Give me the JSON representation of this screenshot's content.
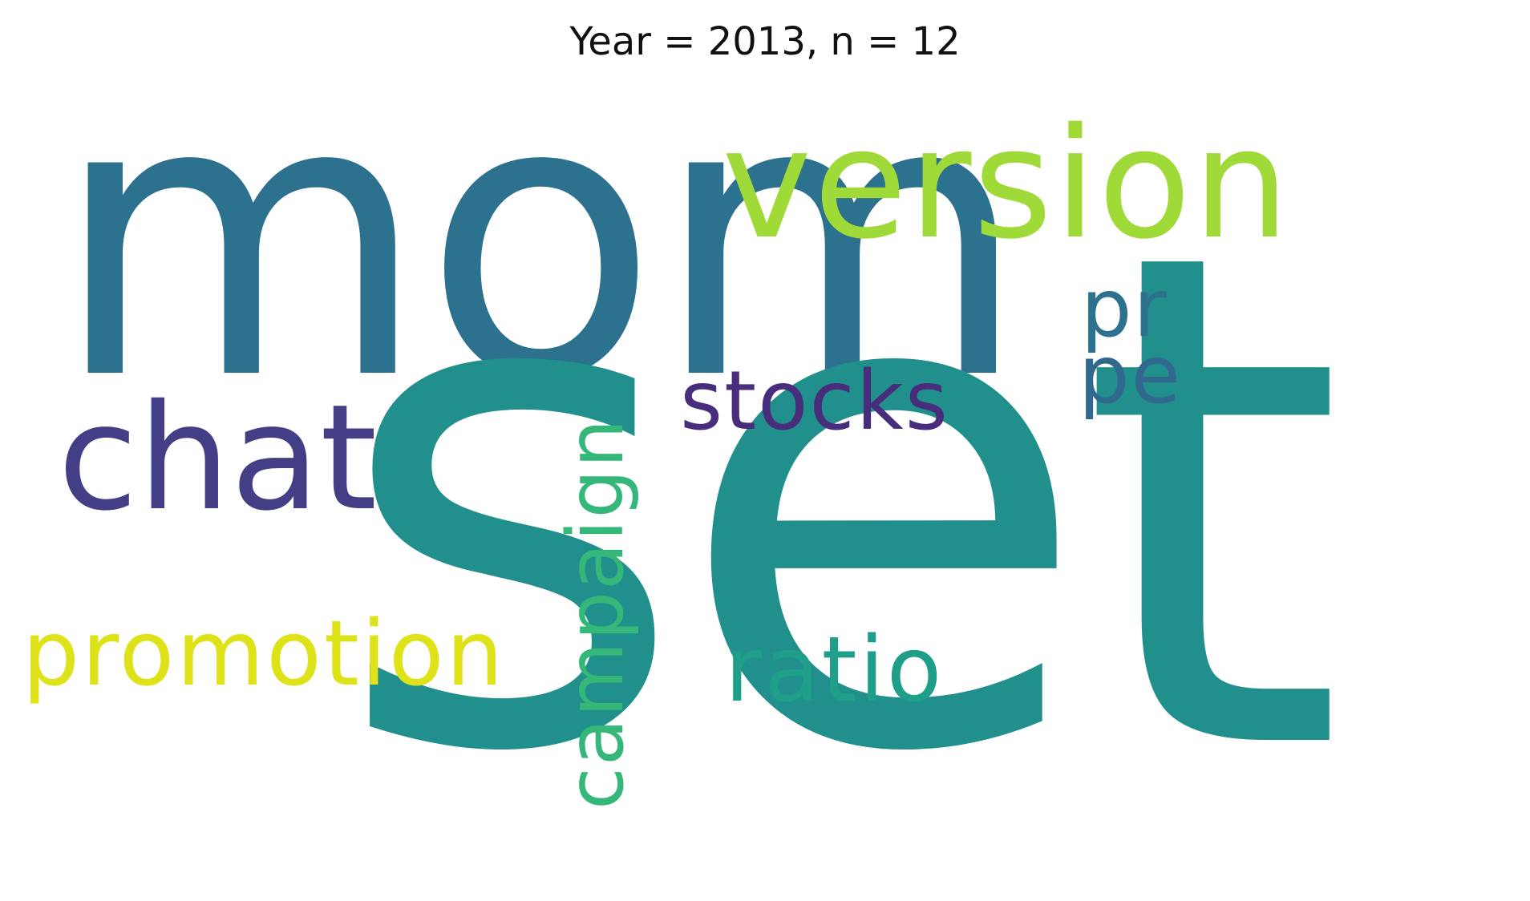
{
  "title": "Year = 2013, n = 12",
  "words": [
    {
      "id": "mom",
      "text": "mom",
      "color": "#2c728e",
      "vertical": false
    },
    {
      "id": "set",
      "text": "set",
      "color": "#21908d",
      "vertical": false
    },
    {
      "id": "version",
      "text": "version",
      "color": "#a0da39",
      "vertical": false
    },
    {
      "id": "chat",
      "text": "chat",
      "color": "#433e85",
      "vertical": false
    },
    {
      "id": "stocks",
      "text": "stocks",
      "color": "#472d7b",
      "vertical": false
    },
    {
      "id": "pr",
      "text": "pr",
      "color": "#2c728e",
      "vertical": false
    },
    {
      "id": "pe",
      "text": "pe",
      "color": "#31688e",
      "vertical": false
    },
    {
      "id": "campaign",
      "text": "campaign",
      "color": "#35b779",
      "vertical": true
    },
    {
      "id": "promotion",
      "text": "promotion",
      "color": "#dde318",
      "vertical": false
    },
    {
      "id": "ratio",
      "text": "ratio",
      "color": "#1f9e89",
      "vertical": false
    }
  ]
}
